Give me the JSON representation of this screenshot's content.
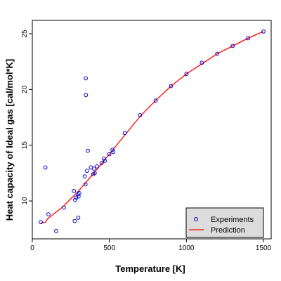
{
  "chart_data": {
    "type": "scatter",
    "xlabel": "Temperature [K]",
    "ylabel": "Heat capacity of Ideal gas [cal/mol*K]",
    "xlim": [
      0,
      1550
    ],
    "ylim": [
      6.6,
      26.2
    ],
    "x_ticks": [
      0,
      500,
      1000,
      1500
    ],
    "y_ticks": [
      10,
      15,
      20,
      25
    ],
    "legend_position": "bottom-right",
    "legend": [
      "Experiments",
      "Prediction"
    ],
    "grid": false,
    "series": [
      {
        "name": "Experiments",
        "marker": "open-circle",
        "color": "#0000cc",
        "points": [
          {
            "x": 55,
            "y": 8.1
          },
          {
            "x": 85,
            "y": 13.0
          },
          {
            "x": 105,
            "y": 8.8
          },
          {
            "x": 155,
            "y": 7.3
          },
          {
            "x": 205,
            "y": 9.4
          },
          {
            "x": 270,
            "y": 10.9
          },
          {
            "x": 275,
            "y": 8.2
          },
          {
            "x": 278,
            "y": 10.1
          },
          {
            "x": 285,
            "y": 10.3
          },
          {
            "x": 295,
            "y": 10.6
          },
          {
            "x": 298,
            "y": 8.5
          },
          {
            "x": 300,
            "y": 10.4
          },
          {
            "x": 305,
            "y": 10.7
          },
          {
            "x": 340,
            "y": 12.2
          },
          {
            "x": 345,
            "y": 11.5
          },
          {
            "x": 347,
            "y": 21.0
          },
          {
            "x": 348,
            "y": 19.5
          },
          {
            "x": 355,
            "y": 12.7
          },
          {
            "x": 360,
            "y": 14.5
          },
          {
            "x": 380,
            "y": 13.0
          },
          {
            "x": 395,
            "y": 12.4
          },
          {
            "x": 400,
            "y": 12.9
          },
          {
            "x": 405,
            "y": 12.5
          },
          {
            "x": 420,
            "y": 13.1
          },
          {
            "x": 450,
            "y": 13.4
          },
          {
            "x": 465,
            "y": 13.8
          },
          {
            "x": 470,
            "y": 13.6
          },
          {
            "x": 500,
            "y": 14.2
          },
          {
            "x": 520,
            "y": 14.6
          },
          {
            "x": 525,
            "y": 14.4
          },
          {
            "x": 600,
            "y": 16.1
          },
          {
            "x": 700,
            "y": 17.7
          },
          {
            "x": 800,
            "y": 19.0
          },
          {
            "x": 900,
            "y": 20.3
          },
          {
            "x": 1000,
            "y": 21.4
          },
          {
            "x": 1100,
            "y": 22.4
          },
          {
            "x": 1200,
            "y": 23.2
          },
          {
            "x": 1300,
            "y": 23.9
          },
          {
            "x": 1400,
            "y": 24.6
          },
          {
            "x": 1500,
            "y": 25.2
          }
        ]
      },
      {
        "name": "Prediction",
        "marker": "line",
        "color": "#ff0000",
        "points": [
          {
            "x": 55,
            "y": 8.0
          },
          {
            "x": 85,
            "y": 8.1
          },
          {
            "x": 100,
            "y": 8.4
          },
          {
            "x": 200,
            "y": 9.5
          },
          {
            "x": 300,
            "y": 10.9
          },
          {
            "x": 400,
            "y": 12.5
          },
          {
            "x": 500,
            "y": 14.2
          },
          {
            "x": 600,
            "y": 15.9
          },
          {
            "x": 700,
            "y": 17.6
          },
          {
            "x": 800,
            "y": 19.0
          },
          {
            "x": 900,
            "y": 20.3
          },
          {
            "x": 1000,
            "y": 21.4
          },
          {
            "x": 1100,
            "y": 22.3
          },
          {
            "x": 1200,
            "y": 23.2
          },
          {
            "x": 1300,
            "y": 23.9
          },
          {
            "x": 1400,
            "y": 24.6
          },
          {
            "x": 1500,
            "y": 25.2
          }
        ]
      }
    ]
  }
}
